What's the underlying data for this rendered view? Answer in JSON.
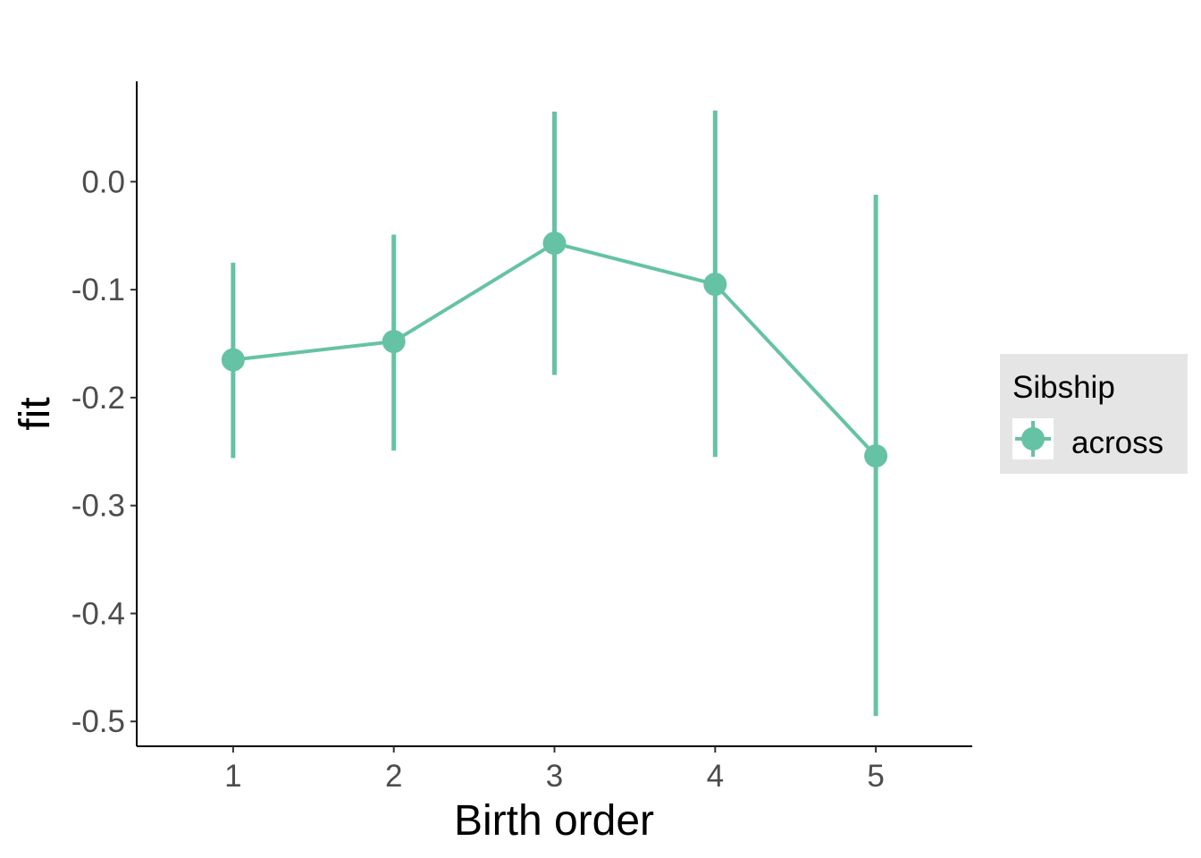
{
  "chart_data": {
    "type": "line",
    "xlabel": "Birth order",
    "ylabel": "fit",
    "x": [
      1,
      2,
      3,
      4,
      5
    ],
    "x_tick_labels": [
      "1",
      "2",
      "3",
      "4",
      "5"
    ],
    "xlim": [
      0.4,
      5.6
    ],
    "ylim": [
      -0.523,
      0.093
    ],
    "y_ticks": [
      0.0,
      -0.1,
      -0.2,
      -0.3,
      -0.4,
      -0.5
    ],
    "y_tick_labels": [
      "0.0",
      "-0.1",
      "-0.2",
      "-0.3",
      "-0.4",
      "-0.5"
    ],
    "grid": false,
    "legend": {
      "title": "Sibship",
      "position": "right",
      "entries": [
        "across"
      ]
    },
    "series": [
      {
        "name": "across",
        "color": "#66c2a5",
        "values": [
          -0.165,
          -0.148,
          -0.057,
          -0.095,
          -0.254
        ],
        "lower": [
          -0.256,
          -0.249,
          -0.179,
          -0.255,
          -0.495
        ],
        "upper": [
          -0.075,
          -0.049,
          0.065,
          0.066,
          -0.012
        ]
      }
    ]
  }
}
